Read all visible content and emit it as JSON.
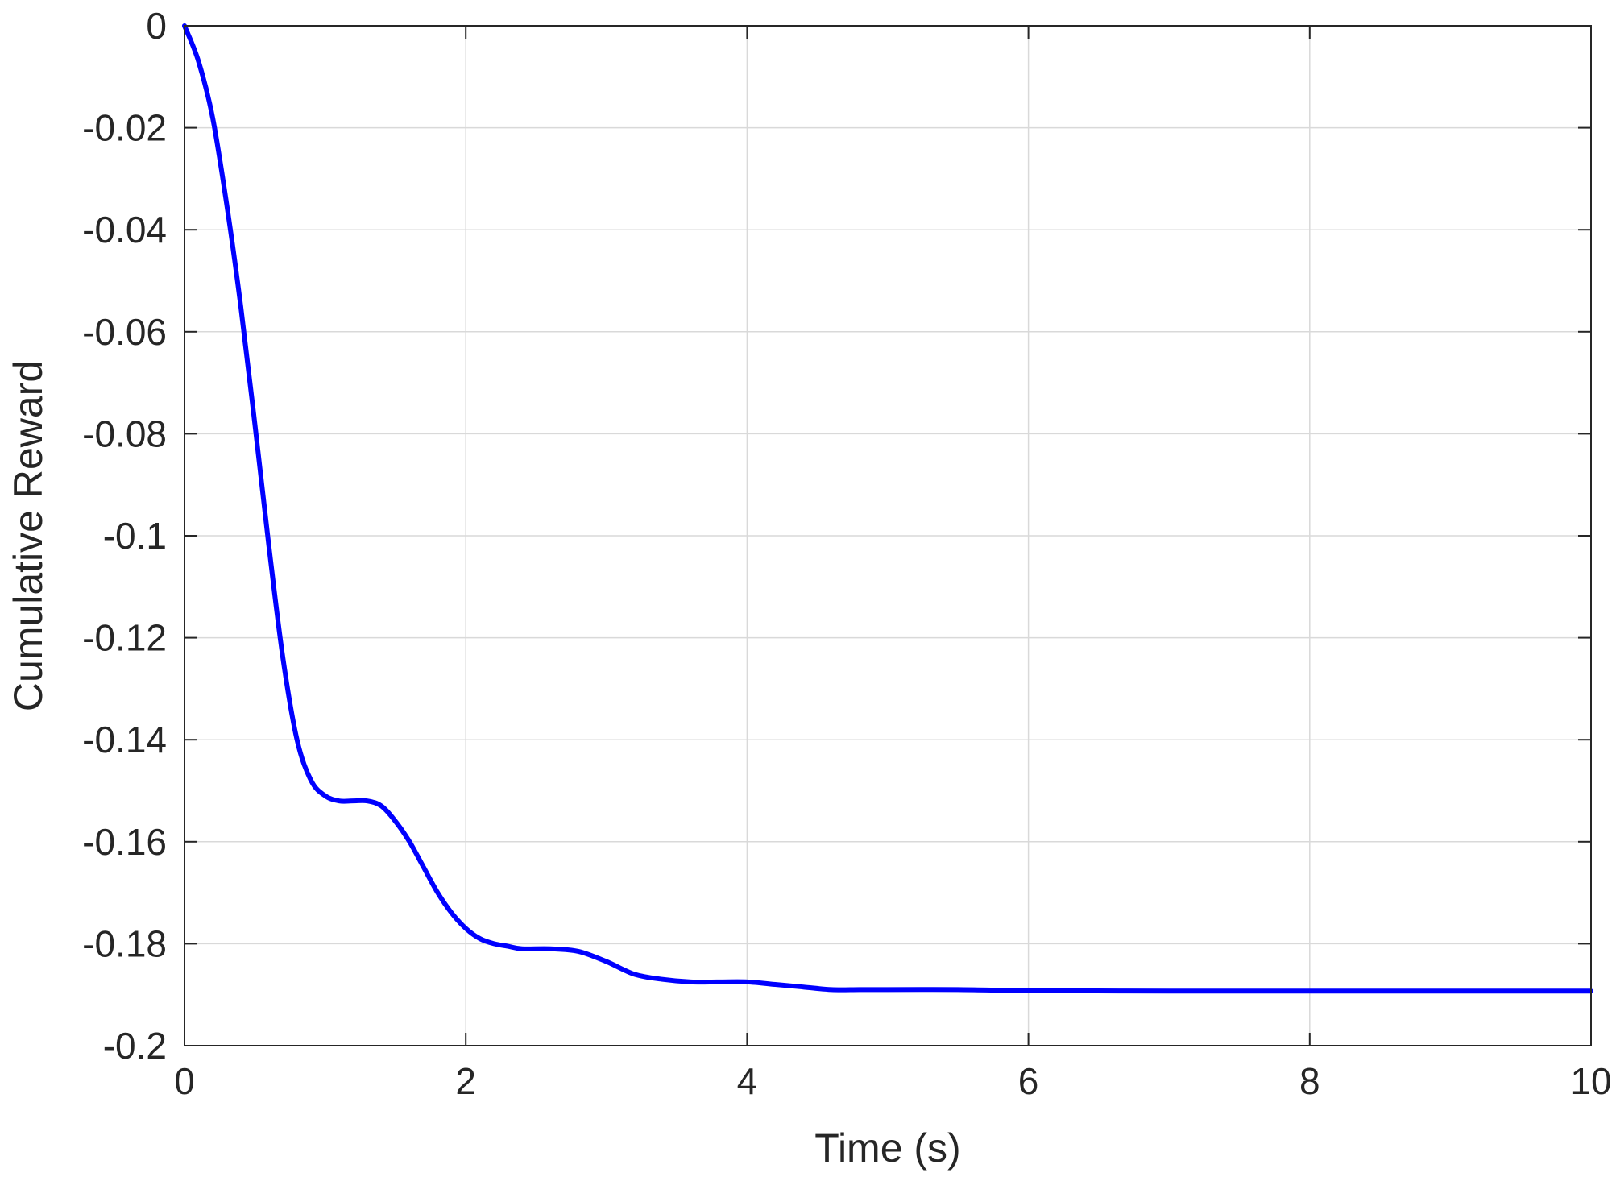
{
  "chart_data": {
    "type": "line",
    "title": "",
    "xlabel": "Time (s)",
    "ylabel": "Cumulative Reward",
    "xlim": [
      0,
      10
    ],
    "ylim": [
      -0.2,
      0
    ],
    "xticks": [
      0,
      2,
      4,
      6,
      8,
      10
    ],
    "yticks": [
      0,
      -0.02,
      -0.04,
      -0.06,
      -0.08,
      -0.1,
      -0.12,
      -0.14,
      -0.16,
      -0.18,
      -0.2
    ],
    "xtick_labels": [
      "0",
      "2",
      "4",
      "6",
      "8",
      "10"
    ],
    "ytick_labels": [
      "0",
      "-0.02",
      "-0.04",
      "-0.06",
      "-0.08",
      "-0.1",
      "-0.12",
      "-0.14",
      "-0.16",
      "-0.18",
      "-0.2"
    ],
    "grid": true,
    "legend": "none",
    "colors": {
      "line": "#0000ff",
      "grid": "#d9d9d9",
      "axes": "#262626"
    },
    "series": [
      {
        "x": [
          0,
          0.1,
          0.2,
          0.3,
          0.4,
          0.5,
          0.6,
          0.7,
          0.8,
          0.9,
          1.0,
          1.1,
          1.2,
          1.3,
          1.4,
          1.5,
          1.6,
          1.7,
          1.8,
          1.9,
          2.0,
          2.1,
          2.2,
          2.3,
          2.4,
          2.6,
          2.8,
          3.0,
          3.2,
          3.4,
          3.6,
          3.8,
          4.0,
          4.2,
          4.4,
          4.6,
          4.8,
          5.0,
          5.5,
          6.0,
          7.0,
          8.0,
          9.0,
          10.0
        ],
        "y": [
          0,
          -0.007,
          -0.018,
          -0.035,
          -0.055,
          -0.078,
          -0.102,
          -0.124,
          -0.14,
          -0.148,
          -0.151,
          -0.152,
          -0.152,
          -0.152,
          -0.153,
          -0.156,
          -0.16,
          -0.165,
          -0.17,
          -0.174,
          -0.177,
          -0.179,
          -0.18,
          -0.1805,
          -0.181,
          -0.181,
          -0.1815,
          -0.1835,
          -0.186,
          -0.187,
          -0.1875,
          -0.1875,
          -0.1875,
          -0.188,
          -0.1885,
          -0.189,
          -0.189,
          -0.189,
          -0.189,
          -0.1892,
          -0.1893,
          -0.1893,
          -0.1893,
          -0.1893
        ]
      }
    ]
  }
}
